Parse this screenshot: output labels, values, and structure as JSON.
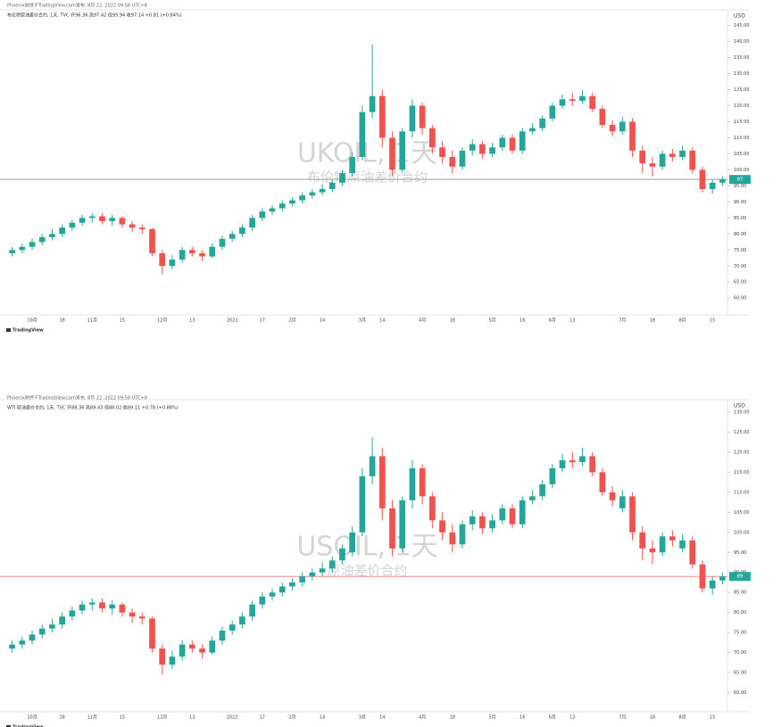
{
  "chart_data": [
    {
      "type": "candlestick",
      "attribution": "Phoenix财经于TradingView.com发布, 8月 22, 2022 09:58 UTC+8",
      "legend": "布伦特原油差价合约, 1天, TVC  开96.36 高97.42 低95.94 收97.14 +0.81 (+0.84%)",
      "title": "UKOIL, 1天",
      "subtitle": "布伦特原油差价合约",
      "unit": "USD",
      "brand": "TradingView",
      "up_color": "#26a69a",
      "down_color": "#ef5350",
      "price_line_color": "#9e9e9e",
      "categories": [
        null,
        null,
        "10月",
        null,
        null,
        "18",
        null,
        null,
        "11月",
        null,
        null,
        "15",
        null,
        null,
        null,
        "12月",
        null,
        null,
        "13",
        null,
        null,
        null,
        "2022",
        null,
        null,
        "17",
        null,
        null,
        "2月",
        null,
        null,
        "14",
        null,
        null,
        null,
        "3月",
        null,
        "14",
        null,
        null,
        null,
        "4月",
        null,
        null,
        "18",
        null,
        null,
        null,
        "5月",
        null,
        null,
        "16",
        null,
        null,
        "6月",
        null,
        "13",
        null,
        null,
        null,
        null,
        "7月",
        null,
        null,
        "18",
        null,
        null,
        "8月",
        null,
        null,
        "15",
        null
      ],
      "open": [
        74,
        75,
        76,
        77.5,
        79,
        80,
        82,
        83.5,
        85,
        85.5,
        84,
        85,
        83,
        82,
        81.5,
        74,
        70,
        72,
        75,
        74,
        73,
        76,
        78.5,
        80,
        82,
        85,
        87,
        88,
        89.5,
        90.5,
        92,
        93,
        94,
        96,
        99,
        104,
        118,
        123,
        110,
        100,
        112,
        120,
        113,
        107,
        104,
        101,
        106,
        108,
        105,
        107,
        110,
        106,
        112,
        113,
        116,
        120,
        122,
        121.5,
        123,
        119,
        114,
        112,
        115,
        106,
        102,
        101,
        105,
        104,
        106,
        100,
        94,
        96
      ],
      "high": [
        76,
        77,
        78.5,
        80,
        81.5,
        83,
        84.5,
        86,
        86.5,
        86.5,
        86,
        85.5,
        84,
        83,
        82,
        75,
        73.5,
        76,
        76,
        75,
        77,
        79.5,
        81,
        83,
        86,
        88,
        89,
        90.5,
        91.5,
        93,
        94,
        95.5,
        97,
        100,
        105.5,
        120,
        139,
        125,
        112,
        113,
        122,
        121,
        114,
        109,
        106,
        107,
        109.5,
        109,
        108.5,
        111,
        111,
        113,
        114.5,
        117,
        121,
        123.5,
        124,
        125,
        124,
        120,
        115.5,
        116.5,
        116,
        107.5,
        104,
        106,
        106.5,
        107.5,
        107,
        101,
        97,
        98
      ],
      "low": [
        73,
        74,
        75,
        76.5,
        78,
        79,
        81,
        82.5,
        83.5,
        83,
        82.5,
        82,
        80.5,
        80,
        73,
        67.5,
        69,
        71,
        73,
        71.5,
        72.5,
        75,
        77.5,
        79,
        81,
        84,
        86,
        87,
        88.5,
        89.5,
        91,
        92,
        93,
        95,
        98,
        103,
        116,
        107,
        98,
        99,
        110,
        111,
        105,
        102,
        99,
        100,
        104.5,
        103.5,
        104,
        106,
        105,
        105,
        111,
        112,
        115,
        119,
        120,
        120.5,
        118,
        113,
        110.5,
        111,
        104,
        99,
        98,
        100,
        102.5,
        103,
        99,
        93,
        92.5,
        95
      ],
      "close": [
        75,
        76,
        77.5,
        79,
        80,
        82,
        83.5,
        85,
        85.5,
        84,
        85,
        83,
        82,
        81.5,
        74,
        70,
        72,
        75,
        74,
        73,
        76,
        78.5,
        80,
        82,
        85,
        87,
        88,
        89.5,
        90.5,
        92,
        93,
        94,
        96,
        99,
        104,
        118,
        123,
        110,
        100,
        112,
        120,
        113,
        107,
        104,
        101,
        106,
        108,
        105,
        107,
        110,
        106,
        112,
        113,
        116,
        120,
        122,
        121.5,
        123,
        119,
        114,
        112,
        115,
        106,
        102,
        101,
        105,
        104,
        106,
        100,
        94,
        96,
        97
      ],
      "ylim": [
        57,
        146
      ],
      "yticks": [
        {
          "value": 60,
          "label": "60.00"
        },
        {
          "value": 65,
          "label": "65.00"
        },
        {
          "value": 70,
          "label": "70.00"
        },
        {
          "value": 75,
          "label": "75.00"
        },
        {
          "value": 80,
          "label": "80.00"
        },
        {
          "value": 85,
          "label": "85.00"
        },
        {
          "value": 90,
          "label": "90.00"
        },
        {
          "value": 95,
          "label": "95.00"
        },
        {
          "value": 100,
          "label": "100.00"
        },
        {
          "value": 105,
          "label": "105.00"
        },
        {
          "value": 110,
          "label": "110.00"
        },
        {
          "value": 115,
          "label": "115.00"
        },
        {
          "value": 120,
          "label": "120.00"
        },
        {
          "value": 125,
          "label": "125.00"
        },
        {
          "value": 130,
          "label": "130.00"
        },
        {
          "value": 135,
          "label": "135.00"
        },
        {
          "value": 140,
          "label": "140.00"
        },
        {
          "value": 145,
          "label": "145.00"
        }
      ]
    },
    {
      "type": "candlestick",
      "attribution": "Phoenix财经于TradingView.com发布, 8月 22, 2022 09:59 UTC+8",
      "legend": "WTI 原油差价合约, 1天, TVC  开88.36 高89.43 低88.02 收89.11 +0.78 (+0.88%)",
      "title": "USOIL, 1天",
      "subtitle": "原油差价合约",
      "unit": "USD",
      "brand": "TradingView",
      "up_color": "#26a69a",
      "down_color": "#ef5350",
      "price_line_color": "#f28b8b",
      "categories": [
        null,
        null,
        "10月",
        null,
        null,
        "18",
        null,
        null,
        "11月",
        null,
        null,
        "15",
        null,
        null,
        null,
        "12月",
        null,
        null,
        "13",
        null,
        null,
        null,
        "2022",
        null,
        null,
        "17",
        null,
        null,
        "2月",
        null,
        null,
        "14",
        null,
        null,
        null,
        "3月",
        null,
        "14",
        null,
        null,
        null,
        "4月",
        null,
        null,
        "18",
        null,
        null,
        null,
        "5月",
        null,
        null,
        "16",
        null,
        null,
        "6月",
        null,
        "13",
        null,
        null,
        null,
        null,
        "7月",
        null,
        null,
        "18",
        null,
        null,
        "8月",
        null,
        null,
        "15",
        null
      ],
      "open": [
        71,
        72,
        73,
        74.5,
        76,
        77,
        79,
        80.5,
        82,
        82.5,
        81,
        82,
        80,
        79,
        78.5,
        71,
        67,
        69,
        72,
        71,
        70,
        73,
        75.5,
        77,
        79,
        82,
        84,
        85,
        86.5,
        87.5,
        89,
        90,
        91,
        93,
        95,
        100,
        114,
        119,
        106,
        96,
        108,
        116,
        109,
        103,
        100,
        97,
        102,
        104,
        101,
        103,
        106,
        102,
        108,
        109,
        112,
        116,
        118,
        117.5,
        119,
        115,
        110,
        106,
        109,
        100,
        96,
        95,
        99,
        96,
        98,
        92,
        86,
        88
      ],
      "high": [
        73,
        74,
        75.5,
        77,
        78.5,
        80,
        81.5,
        83,
        83.5,
        83.5,
        83,
        82.5,
        81,
        80,
        79,
        72,
        70.5,
        73,
        73,
        72,
        74,
        76.5,
        78,
        80,
        83,
        85,
        86,
        87.5,
        88.5,
        90,
        91,
        92.5,
        94,
        97,
        101.5,
        116,
        123.7,
        121,
        108,
        109,
        118,
        117,
        110,
        105,
        102,
        103,
        105.5,
        105,
        104.5,
        107,
        107,
        109,
        110.5,
        113,
        117,
        119.5,
        120,
        121,
        120,
        116,
        111.5,
        110.5,
        110,
        101.5,
        98,
        100,
        100.5,
        99.5,
        99,
        93,
        89,
        90
      ],
      "low": [
        70,
        71,
        72,
        73.5,
        75,
        76,
        78,
        79.5,
        80.5,
        80,
        79.5,
        79,
        77.5,
        77,
        70,
        64.5,
        66,
        68,
        70,
        68.5,
        69.5,
        72,
        74.5,
        76,
        78,
        81,
        83,
        84,
        85.5,
        86.5,
        88,
        89,
        90,
        92,
        94,
        99,
        112,
        103,
        94,
        95,
        106,
        107,
        101,
        98,
        95,
        96,
        100.5,
        99.5,
        100,
        102,
        101,
        101,
        107,
        108,
        111,
        115,
        116,
        116.5,
        114,
        109,
        106.5,
        105,
        98,
        93,
        92,
        94,
        96.5,
        95,
        91,
        85,
        84.5,
        87
      ],
      "close": [
        72,
        73,
        74.5,
        76,
        77,
        79,
        80.5,
        82,
        82.5,
        81,
        82,
        80,
        79,
        78.5,
        71,
        67,
        69,
        72,
        71,
        70,
        73,
        75.5,
        77,
        79,
        82,
        84,
        85,
        86.5,
        87.5,
        89,
        90,
        91,
        93,
        96,
        100,
        114,
        119,
        106,
        96,
        108,
        116,
        109,
        103,
        100,
        97,
        102,
        104,
        101,
        103,
        106,
        102,
        108,
        109,
        112,
        116,
        118,
        117.5,
        119,
        115,
        110,
        108,
        109,
        100,
        96,
        95,
        99,
        98,
        98,
        92,
        86,
        88,
        89
      ],
      "ylim": [
        57,
        130
      ],
      "yticks": [
        {
          "value": 60,
          "label": "60.00"
        },
        {
          "value": 65,
          "label": "65.00"
        },
        {
          "value": 70,
          "label": "70.00"
        },
        {
          "value": 75,
          "label": "75.00"
        },
        {
          "value": 80,
          "label": "80.00"
        },
        {
          "value": 85,
          "label": "85.00"
        },
        {
          "value": 90,
          "label": "90.00"
        },
        {
          "value": 95,
          "label": "95.00"
        },
        {
          "value": 100,
          "label": "100.00"
        },
        {
          "value": 105,
          "label": "105.00"
        },
        {
          "value": 110,
          "label": "110.00"
        },
        {
          "value": 115,
          "label": "115.00"
        },
        {
          "value": 120,
          "label": "120.00"
        },
        {
          "value": 125,
          "label": "125.00"
        },
        {
          "value": 130,
          "label": "130.00"
        }
      ]
    }
  ]
}
